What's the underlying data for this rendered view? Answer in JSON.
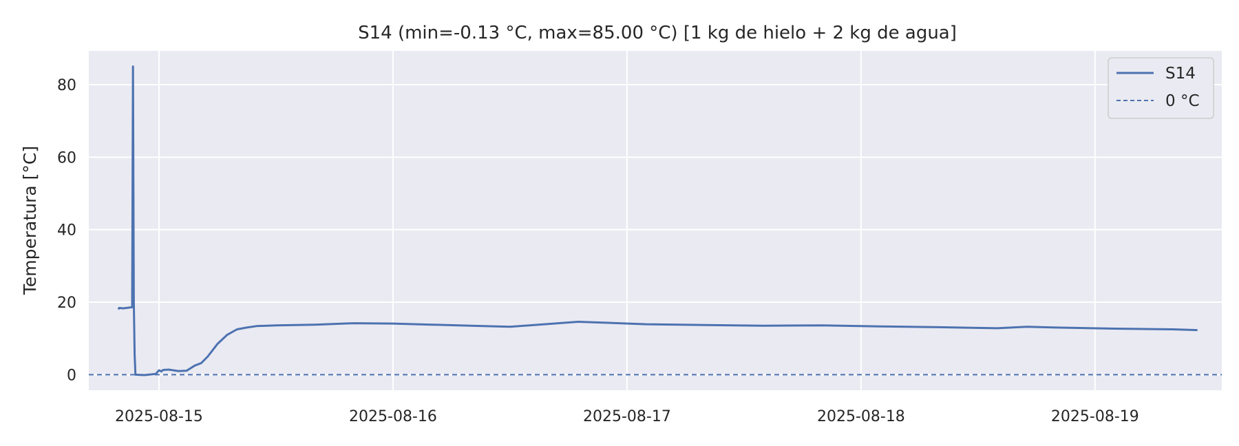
{
  "chart_data": {
    "type": "line",
    "title": "S14  (min=-0.13 °C, max=85.00 °C)  [1 kg de hielo + 2 kg de agua]",
    "xlabel": "",
    "ylabel": "Temperatura [°C]",
    "x_tick_labels": [
      "2025-08-15",
      "2025-08-16",
      "2025-08-17",
      "2025-08-18",
      "2025-08-19"
    ],
    "y_tick_labels": [
      "0",
      "20",
      "40",
      "60",
      "80"
    ],
    "y_ticks": [
      0,
      20,
      40,
      60,
      80
    ],
    "xlim": [
      "2025-08-14T16:48",
      "2025-08-19T13:00"
    ],
    "ylim": [
      -4.3,
      89.3
    ],
    "grid": true,
    "legend_position": "top-right",
    "series": [
      {
        "name": "S14",
        "color": "#4c72b0",
        "style": "solid",
        "points": [
          [
            "2025-08-14T19:50",
            18.0
          ],
          [
            "2025-08-14T19:55",
            18.4
          ],
          [
            "2025-08-14T20:20",
            18.3
          ],
          [
            "2025-08-14T21:15",
            18.6
          ],
          [
            "2025-08-14T21:20",
            85.0
          ],
          [
            "2025-08-14T21:25",
            20.0
          ],
          [
            "2025-08-14T21:30",
            5.5
          ],
          [
            "2025-08-14T21:35",
            0.0
          ],
          [
            "2025-08-14T22:30",
            -0.13
          ],
          [
            "2025-08-14T23:40",
            0.2
          ],
          [
            "2025-08-15T00:00",
            1.2
          ],
          [
            "2025-08-15T00:15",
            0.9
          ],
          [
            "2025-08-15T00:25",
            1.3
          ],
          [
            "2025-08-15T01:00",
            1.4
          ],
          [
            "2025-08-15T02:00",
            1.0
          ],
          [
            "2025-08-15T02:50",
            1.1
          ],
          [
            "2025-08-15T03:40",
            2.5
          ],
          [
            "2025-08-15T04:20",
            3.2
          ],
          [
            "2025-08-15T05:00",
            5.0
          ],
          [
            "2025-08-15T06:00",
            8.5
          ],
          [
            "2025-08-15T07:00",
            11.0
          ],
          [
            "2025-08-15T08:00",
            12.5
          ],
          [
            "2025-08-15T09:00",
            13.0
          ],
          [
            "2025-08-15T10:00",
            13.4
          ],
          [
            "2025-08-15T12:00",
            13.6
          ],
          [
            "2025-08-15T16:00",
            13.8
          ],
          [
            "2025-08-15T20:00",
            14.2
          ],
          [
            "2025-08-16T00:00",
            14.1
          ],
          [
            "2025-08-16T04:00",
            13.8
          ],
          [
            "2025-08-16T08:00",
            13.5
          ],
          [
            "2025-08-16T12:00",
            13.2
          ],
          [
            "2025-08-16T16:00",
            14.0
          ],
          [
            "2025-08-16T19:00",
            14.6
          ],
          [
            "2025-08-16T22:00",
            14.3
          ],
          [
            "2025-08-17T02:00",
            13.9
          ],
          [
            "2025-08-17T08:00",
            13.7
          ],
          [
            "2025-08-17T14:00",
            13.5
          ],
          [
            "2025-08-17T20:00",
            13.6
          ],
          [
            "2025-08-18T02:00",
            13.3
          ],
          [
            "2025-08-18T08:00",
            13.1
          ],
          [
            "2025-08-18T14:00",
            12.8
          ],
          [
            "2025-08-18T17:00",
            13.2
          ],
          [
            "2025-08-18T20:00",
            13.0
          ],
          [
            "2025-08-19T02:00",
            12.7
          ],
          [
            "2025-08-19T08:00",
            12.5
          ],
          [
            "2025-08-19T10:30",
            12.3
          ]
        ]
      },
      {
        "name": "0 °C",
        "color": "#4c72b0",
        "style": "dashed",
        "y": 0
      }
    ]
  }
}
